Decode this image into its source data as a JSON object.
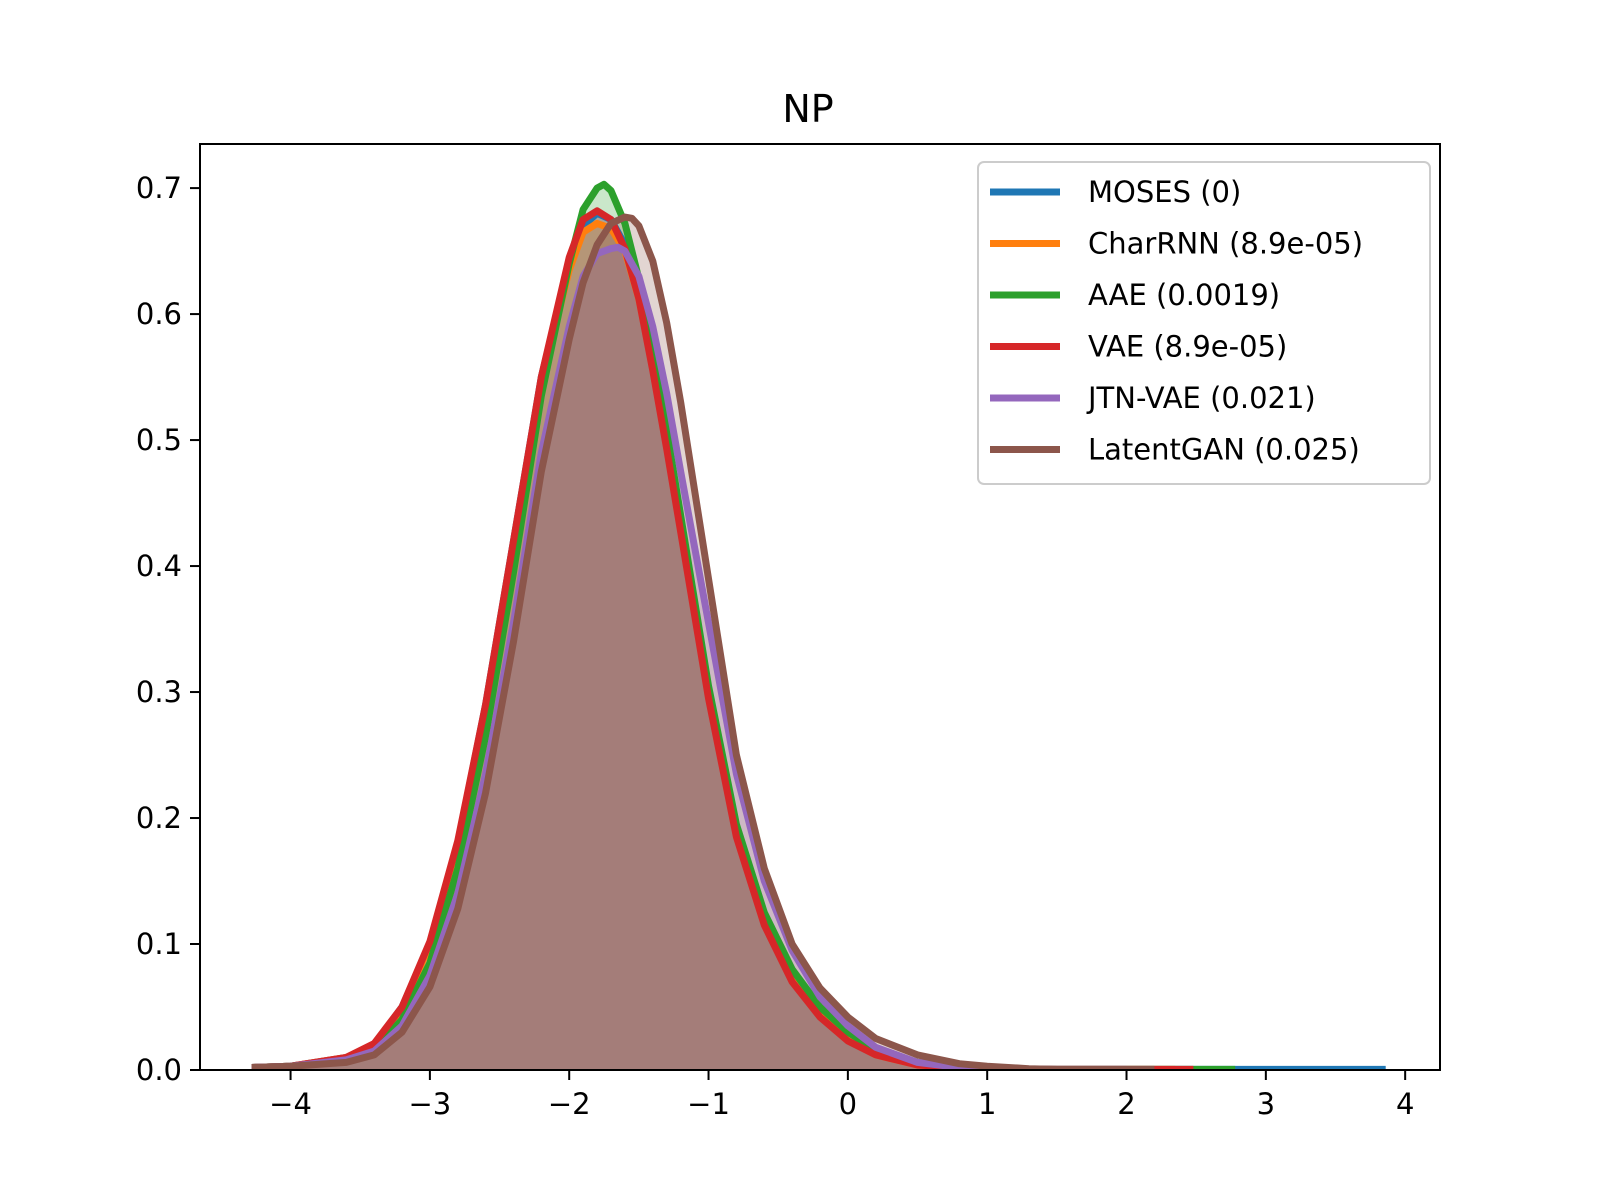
{
  "chart_data": {
    "type": "area",
    "title": "NP",
    "xlabel": "",
    "ylabel": "",
    "xlim": [
      -4.65,
      4.25
    ],
    "ylim": [
      0,
      0.735
    ],
    "x_ticks": [
      -4,
      -3,
      -2,
      -1,
      0,
      1,
      2,
      3,
      4
    ],
    "x_tick_labels": [
      "−4",
      "−3",
      "−2",
      "−1",
      "0",
      "1",
      "2",
      "3",
      "4"
    ],
    "y_ticks": [
      0.0,
      0.1,
      0.2,
      0.3,
      0.4,
      0.5,
      0.6,
      0.7
    ],
    "y_tick_labels": [
      "0.0",
      "0.1",
      "0.2",
      "0.3",
      "0.4",
      "0.5",
      "0.6",
      "0.7"
    ],
    "grid": false,
    "legend_position": "top-right",
    "series": [
      {
        "name": "MOSES (0)",
        "color": "#1f77b4",
        "x": [
          -4.28,
          -4.0,
          -3.6,
          -3.4,
          -3.2,
          -3.0,
          -2.8,
          -2.6,
          -2.4,
          -2.2,
          -2.0,
          -1.9,
          -1.8,
          -1.7,
          -1.6,
          -1.5,
          -1.4,
          -1.3,
          -1.2,
          -1.0,
          -0.8,
          -0.6,
          -0.4,
          -0.2,
          0.0,
          0.2,
          0.5,
          0.8,
          1.0,
          1.5,
          2.0,
          2.5,
          3.0,
          3.5,
          3.86
        ],
        "y": [
          0.002,
          0.003,
          0.01,
          0.02,
          0.05,
          0.1,
          0.18,
          0.29,
          0.42,
          0.55,
          0.64,
          0.67,
          0.68,
          0.675,
          0.655,
          0.615,
          0.56,
          0.5,
          0.435,
          0.3,
          0.19,
          0.12,
          0.075,
          0.045,
          0.025,
          0.013,
          0.005,
          0.002,
          0.001,
          0.0005,
          0.0005,
          0.0005,
          0.0005,
          0.0005,
          0.0005
        ]
      },
      {
        "name": "CharRNN (8.9e-05)",
        "color": "#ff7f0e",
        "x": [
          -4.28,
          -4.0,
          -3.6,
          -3.4,
          -3.2,
          -3.0,
          -2.8,
          -2.6,
          -2.4,
          -2.2,
          -2.0,
          -1.9,
          -1.8,
          -1.7,
          -1.6,
          -1.5,
          -1.4,
          -1.3,
          -1.2,
          -1.0,
          -0.8,
          -0.6,
          -0.4,
          -0.2,
          0.0,
          0.2,
          0.5,
          0.8,
          1.0,
          1.5,
          2.0,
          2.35
        ],
        "y": [
          0.002,
          0.003,
          0.01,
          0.02,
          0.048,
          0.1,
          0.178,
          0.285,
          0.415,
          0.545,
          0.635,
          0.665,
          0.672,
          0.668,
          0.65,
          0.612,
          0.557,
          0.497,
          0.432,
          0.3,
          0.19,
          0.12,
          0.074,
          0.044,
          0.024,
          0.012,
          0.004,
          0.002,
          0.001,
          0.0005,
          0.0005,
          0.0005
        ]
      },
      {
        "name": "AAE (0.0019)",
        "color": "#2ca02c",
        "x": [
          -4.28,
          -4.0,
          -3.6,
          -3.4,
          -3.2,
          -3.0,
          -2.8,
          -2.6,
          -2.4,
          -2.2,
          -2.0,
          -1.9,
          -1.8,
          -1.75,
          -1.7,
          -1.6,
          -1.5,
          -1.4,
          -1.3,
          -1.2,
          -1.0,
          -0.8,
          -0.6,
          -0.4,
          -0.2,
          0.0,
          0.2,
          0.5,
          0.8,
          1.0,
          1.5,
          2.0,
          2.5,
          2.78
        ],
        "y": [
          0.002,
          0.003,
          0.008,
          0.016,
          0.04,
          0.085,
          0.16,
          0.265,
          0.395,
          0.535,
          0.64,
          0.683,
          0.7,
          0.703,
          0.698,
          0.672,
          0.628,
          0.572,
          0.508,
          0.44,
          0.305,
          0.195,
          0.125,
          0.08,
          0.05,
          0.03,
          0.016,
          0.006,
          0.002,
          0.001,
          0.0005,
          0.0005,
          0.0005,
          0.0005
        ]
      },
      {
        "name": "VAE (8.9e-05)",
        "color": "#d62728",
        "x": [
          -4.28,
          -4.0,
          -3.6,
          -3.4,
          -3.2,
          -3.0,
          -2.8,
          -2.6,
          -2.4,
          -2.2,
          -2.0,
          -1.9,
          -1.8,
          -1.7,
          -1.6,
          -1.5,
          -1.4,
          -1.3,
          -1.2,
          -1.0,
          -0.8,
          -0.6,
          -0.4,
          -0.2,
          0.0,
          0.2,
          0.5,
          0.8,
          1.0,
          1.5,
          2.0,
          2.48
        ],
        "y": [
          0.002,
          0.003,
          0.01,
          0.021,
          0.05,
          0.102,
          0.182,
          0.29,
          0.42,
          0.55,
          0.645,
          0.675,
          0.682,
          0.675,
          0.652,
          0.612,
          0.555,
          0.493,
          0.427,
          0.295,
          0.185,
          0.115,
          0.07,
          0.042,
          0.023,
          0.012,
          0.004,
          0.002,
          0.001,
          0.0005,
          0.0005,
          0.0005
        ]
      },
      {
        "name": "JTN-VAE (0.021)",
        "color": "#9467bd",
        "x": [
          -4.28,
          -4.0,
          -3.6,
          -3.4,
          -3.2,
          -3.0,
          -2.8,
          -2.6,
          -2.4,
          -2.2,
          -2.0,
          -1.9,
          -1.8,
          -1.7,
          -1.65,
          -1.6,
          -1.5,
          -1.4,
          -1.3,
          -1.2,
          -1.1,
          -1.0,
          -0.8,
          -0.6,
          -0.4,
          -0.2,
          0.0,
          0.2,
          0.5,
          0.8,
          1.0,
          1.5,
          2.0
        ],
        "y": [
          0.002,
          0.003,
          0.008,
          0.015,
          0.035,
          0.075,
          0.14,
          0.235,
          0.355,
          0.49,
          0.59,
          0.63,
          0.648,
          0.652,
          0.653,
          0.65,
          0.63,
          0.59,
          0.537,
          0.475,
          0.415,
          0.355,
          0.235,
          0.15,
          0.095,
          0.058,
          0.035,
          0.018,
          0.006,
          0.002,
          0.001,
          0.0005,
          0.0005
        ]
      },
      {
        "name": "LatentGAN (0.025)",
        "color": "#8c564b",
        "x": [
          -4.28,
          -4.0,
          -3.6,
          -3.4,
          -3.2,
          -3.0,
          -2.8,
          -2.6,
          -2.4,
          -2.2,
          -2.0,
          -1.9,
          -1.8,
          -1.7,
          -1.6,
          -1.55,
          -1.5,
          -1.4,
          -1.3,
          -1.2,
          -1.1,
          -1.0,
          -0.8,
          -0.6,
          -0.4,
          -0.2,
          0.0,
          0.2,
          0.5,
          0.8,
          1.0,
          1.3,
          1.5,
          2.0,
          2.2
        ],
        "y": [
          0.002,
          0.003,
          0.006,
          0.012,
          0.03,
          0.066,
          0.128,
          0.22,
          0.34,
          0.475,
          0.58,
          0.625,
          0.655,
          0.672,
          0.677,
          0.676,
          0.67,
          0.642,
          0.593,
          0.53,
          0.46,
          0.39,
          0.25,
          0.16,
          0.1,
          0.065,
          0.042,
          0.025,
          0.012,
          0.005,
          0.003,
          0.001,
          0.0005,
          0.0005,
          0.0005
        ]
      }
    ]
  }
}
